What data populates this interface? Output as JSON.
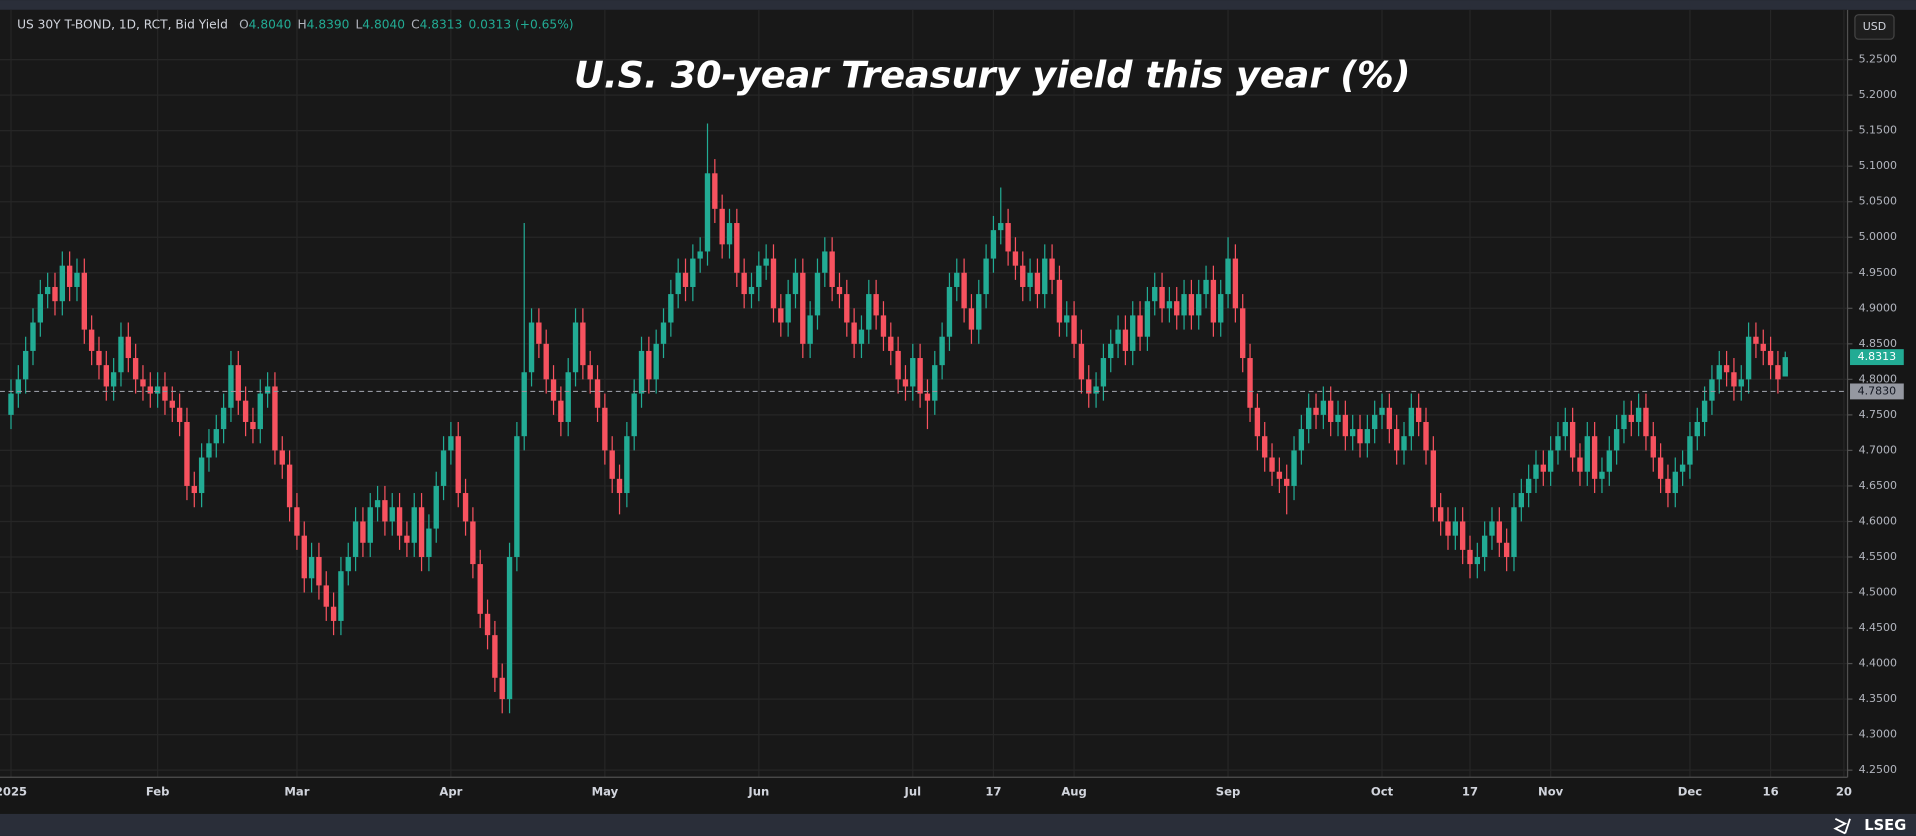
{
  "chart_data": {
    "type": "candlestick",
    "title": "U.S. 30-year Treasury yield this year (%)",
    "header": {
      "symbol": "US 30Y T-BOND, 1D, RCT, Bid Yield",
      "fields": [
        {
          "key": "O",
          "value": "4.8040"
        },
        {
          "key": "H",
          "value": "4.8390"
        },
        {
          "key": "L",
          "value": "4.8040"
        },
        {
          "key": "C",
          "value": "4.8313"
        }
      ],
      "change": "0.0313 (+0.65%)"
    },
    "currency": "USD",
    "brand": "LSEG",
    "up_color": "#22ab94",
    "down_color": "#f7525f",
    "grid": true,
    "open": [
      4.75,
      4.78,
      4.8,
      4.84,
      4.88,
      4.92,
      4.93,
      4.91,
      4.96,
      4.93,
      4.95,
      4.87,
      4.84,
      4.82,
      4.79,
      4.81,
      4.86,
      4.83,
      4.8,
      4.79,
      4.78,
      4.79,
      4.77,
      4.76,
      4.74,
      4.65,
      4.64,
      4.69,
      4.71,
      4.73,
      4.76,
      4.82,
      4.77,
      4.74,
      4.73,
      4.78,
      4.79,
      4.7,
      4.68,
      4.62,
      4.58,
      4.52,
      4.55,
      4.51,
      4.48,
      4.46,
      4.53,
      4.55,
      4.6,
      4.57,
      4.62,
      4.63,
      4.6,
      4.62,
      4.58,
      4.57,
      4.62,
      4.55,
      4.59,
      4.65,
      4.7,
      4.72,
      4.64,
      4.6,
      4.54,
      4.47,
      4.44,
      4.38,
      4.35,
      4.55,
      4.72,
      4.81,
      4.88,
      4.85,
      4.8,
      4.77,
      4.74,
      4.81,
      4.88,
      4.82,
      4.8,
      4.76,
      4.7,
      4.66,
      4.64,
      4.72,
      4.78,
      4.84,
      4.8,
      4.85,
      4.88,
      4.92,
      4.95,
      4.93,
      4.97,
      4.98,
      5.09,
      5.04,
      4.99,
      5.02,
      4.95,
      4.92,
      4.93,
      4.96,
      4.97,
      4.9,
      4.88,
      4.92,
      4.95,
      4.85,
      4.89,
      4.95,
      4.98,
      4.93,
      4.92,
      4.88,
      4.85,
      4.87,
      4.92,
      4.89,
      4.86,
      4.84,
      4.8,
      4.79,
      4.83,
      4.78,
      4.77,
      4.82,
      4.86,
      4.93,
      4.95,
      4.9,
      4.87,
      4.92,
      4.97,
      5.01,
      5.02,
      4.98,
      4.96,
      4.93,
      4.95,
      4.92,
      4.97,
      4.94,
      4.88,
      4.89,
      4.85,
      4.8,
      4.78,
      4.79,
      4.83,
      4.85,
      4.87,
      4.84,
      4.89,
      4.86,
      4.91,
      4.93,
      4.9,
      4.91,
      4.89,
      4.92,
      4.89,
      4.92,
      4.94,
      4.88,
      4.92,
      4.97,
      4.9,
      4.83,
      4.76,
      4.72,
      4.69,
      4.67,
      4.66,
      4.65,
      4.7,
      4.73,
      4.76,
      4.75,
      4.77,
      4.74,
      4.75,
      4.72,
      4.73,
      4.71,
      4.73,
      4.75,
      4.76,
      4.73,
      4.7,
      4.72,
      4.76,
      4.74,
      4.7,
      4.62,
      4.6,
      4.58,
      4.6,
      4.56,
      4.54,
      4.55,
      4.58,
      4.6,
      4.57,
      4.55,
      4.62,
      4.64,
      4.66,
      4.68,
      4.67,
      4.7,
      4.72,
      4.74,
      4.69,
      4.67,
      4.72,
      4.66,
      4.67,
      4.7,
      4.73,
      4.75,
      4.74,
      4.76,
      4.72,
      4.69,
      4.66,
      4.64,
      4.67,
      4.68,
      4.72,
      4.74,
      4.77,
      4.8,
      4.82,
      4.81,
      4.79,
      4.8,
      4.86,
      4.85,
      4.84,
      4.82,
      4.804
    ],
    "high": [
      4.8,
      4.82,
      4.86,
      4.9,
      4.94,
      4.95,
      4.95,
      4.98,
      4.98,
      4.97,
      4.97,
      4.89,
      4.86,
      4.84,
      4.83,
      4.88,
      4.88,
      4.85,
      4.82,
      4.81,
      4.81,
      4.81,
      4.79,
      4.78,
      4.76,
      4.67,
      4.71,
      4.73,
      4.75,
      4.78,
      4.84,
      4.84,
      4.79,
      4.76,
      4.8,
      4.81,
      4.81,
      4.72,
      4.7,
      4.64,
      4.6,
      4.57,
      4.57,
      4.53,
      4.5,
      4.55,
      4.57,
      4.62,
      4.62,
      4.64,
      4.65,
      4.65,
      4.64,
      4.64,
      4.6,
      4.64,
      4.64,
      4.61,
      4.67,
      4.72,
      4.74,
      4.74,
      4.66,
      4.62,
      4.56,
      4.49,
      4.46,
      4.4,
      4.57,
      4.74,
      5.02,
      4.9,
      4.9,
      4.87,
      4.82,
      4.79,
      4.83,
      4.9,
      4.9,
      4.84,
      4.82,
      4.78,
      4.72,
      4.68,
      4.74,
      4.8,
      4.86,
      4.86,
      4.87,
      4.9,
      4.94,
      4.97,
      4.97,
      4.99,
      5.0,
      5.16,
      5.11,
      5.06,
      5.04,
      5.04,
      4.97,
      4.95,
      4.98,
      4.99,
      4.99,
      4.92,
      4.94,
      4.97,
      4.97,
      4.91,
      4.97,
      5.0,
      5.0,
      4.95,
      4.94,
      4.9,
      4.89,
      4.94,
      4.94,
      4.91,
      4.88,
      4.86,
      4.82,
      4.85,
      4.85,
      4.8,
      4.84,
      4.88,
      4.95,
      4.97,
      4.97,
      4.92,
      4.94,
      4.99,
      5.03,
      5.07,
      5.04,
      5.0,
      4.98,
      4.97,
      4.97,
      4.99,
      4.99,
      4.96,
      4.91,
      4.91,
      4.87,
      4.82,
      4.81,
      4.85,
      4.87,
      4.89,
      4.89,
      4.91,
      4.91,
      4.93,
      4.95,
      4.95,
      4.93,
      4.93,
      4.94,
      4.94,
      4.94,
      4.96,
      4.96,
      4.94,
      5.0,
      4.99,
      4.92,
      4.85,
      4.78,
      4.74,
      4.71,
      4.69,
      4.68,
      4.72,
      4.75,
      4.78,
      4.78,
      4.79,
      4.79,
      4.77,
      4.77,
      4.75,
      4.75,
      4.75,
      4.77,
      4.78,
      4.78,
      4.75,
      4.74,
      4.78,
      4.78,
      4.76,
      4.72,
      4.64,
      4.62,
      4.62,
      4.62,
      4.58,
      4.57,
      4.6,
      4.62,
      4.62,
      4.59,
      4.64,
      4.66,
      4.68,
      4.7,
      4.7,
      4.72,
      4.74,
      4.76,
      4.76,
      4.71,
      4.74,
      4.74,
      4.69,
      4.72,
      4.75,
      4.77,
      4.77,
      4.78,
      4.78,
      4.74,
      4.71,
      4.68,
      4.69,
      4.7,
      4.74,
      4.76,
      4.79,
      4.82,
      4.84,
      4.84,
      4.83,
      4.82,
      4.88,
      4.88,
      4.87,
      4.86,
      4.84,
      4.839
    ],
    "low": [
      4.73,
      4.76,
      4.78,
      4.82,
      4.86,
      4.9,
      4.89,
      4.89,
      4.91,
      4.91,
      4.85,
      4.82,
      4.8,
      4.77,
      4.77,
      4.79,
      4.81,
      4.78,
      4.77,
      4.76,
      4.76,
      4.75,
      4.74,
      4.72,
      4.63,
      4.62,
      4.62,
      4.67,
      4.69,
      4.71,
      4.74,
      4.75,
      4.72,
      4.71,
      4.71,
      4.76,
      4.68,
      4.66,
      4.6,
      4.56,
      4.5,
      4.5,
      4.49,
      4.46,
      4.44,
      4.44,
      4.51,
      4.53,
      4.55,
      4.55,
      4.6,
      4.58,
      4.58,
      4.56,
      4.55,
      4.55,
      4.53,
      4.53,
      4.57,
      4.63,
      4.68,
      4.62,
      4.58,
      4.52,
      4.45,
      4.42,
      4.36,
      4.33,
      4.33,
      4.53,
      4.7,
      4.79,
      4.83,
      4.78,
      4.75,
      4.72,
      4.72,
      4.79,
      4.8,
      4.78,
      4.74,
      4.68,
      4.64,
      4.61,
      4.62,
      4.7,
      4.76,
      4.78,
      4.78,
      4.83,
      4.86,
      4.9,
      4.91,
      4.91,
      4.95,
      4.96,
      5.02,
      4.97,
      4.97,
      4.93,
      4.9,
      4.9,
      4.91,
      4.94,
      4.88,
      4.86,
      4.86,
      4.9,
      4.83,
      4.83,
      4.87,
      4.93,
      4.91,
      4.9,
      4.86,
      4.83,
      4.83,
      4.85,
      4.87,
      4.84,
      4.82,
      4.78,
      4.77,
      4.77,
      4.76,
      4.73,
      4.75,
      4.8,
      4.84,
      4.91,
      4.88,
      4.85,
      4.85,
      4.9,
      4.95,
      4.99,
      4.96,
      4.94,
      4.91,
      4.91,
      4.9,
      4.9,
      4.92,
      4.86,
      4.86,
      4.83,
      4.78,
      4.76,
      4.76,
      4.77,
      4.81,
      4.83,
      4.82,
      4.82,
      4.84,
      4.84,
      4.89,
      4.88,
      4.88,
      4.87,
      4.87,
      4.87,
      4.87,
      4.9,
      4.86,
      4.86,
      4.9,
      4.88,
      4.81,
      4.74,
      4.7,
      4.67,
      4.65,
      4.64,
      4.61,
      4.63,
      4.68,
      4.71,
      4.73,
      4.73,
      4.72,
      4.72,
      4.7,
      4.7,
      4.69,
      4.69,
      4.71,
      4.73,
      4.71,
      4.68,
      4.68,
      4.7,
      4.72,
      4.68,
      4.6,
      4.58,
      4.56,
      4.56,
      4.54,
      4.52,
      4.52,
      4.53,
      4.56,
      4.55,
      4.53,
      4.53,
      4.6,
      4.62,
      4.64,
      4.65,
      4.65,
      4.68,
      4.7,
      4.67,
      4.65,
      4.65,
      4.64,
      4.64,
      4.65,
      4.68,
      4.71,
      4.72,
      4.72,
      4.7,
      4.67,
      4.64,
      4.62,
      4.62,
      4.65,
      4.66,
      4.7,
      4.72,
      4.75,
      4.78,
      4.79,
      4.77,
      4.77,
      4.78,
      4.83,
      4.82,
      4.8,
      4.78,
      4.804
    ],
    "close": [
      4.78,
      4.8,
      4.84,
      4.88,
      4.92,
      4.93,
      4.91,
      4.96,
      4.93,
      4.95,
      4.87,
      4.84,
      4.82,
      4.79,
      4.81,
      4.86,
      4.83,
      4.8,
      4.79,
      4.78,
      4.79,
      4.77,
      4.76,
      4.74,
      4.65,
      4.64,
      4.69,
      4.71,
      4.73,
      4.76,
      4.82,
      4.77,
      4.74,
      4.73,
      4.78,
      4.79,
      4.7,
      4.68,
      4.62,
      4.58,
      4.52,
      4.55,
      4.51,
      4.48,
      4.46,
      4.53,
      4.55,
      4.6,
      4.57,
      4.62,
      4.63,
      4.6,
      4.62,
      4.58,
      4.57,
      4.62,
      4.55,
      4.59,
      4.65,
      4.7,
      4.72,
      4.64,
      4.6,
      4.54,
      4.47,
      4.44,
      4.38,
      4.35,
      4.55,
      4.72,
      4.81,
      4.88,
      4.85,
      4.8,
      4.77,
      4.74,
      4.81,
      4.88,
      4.82,
      4.8,
      4.76,
      4.7,
      4.66,
      4.64,
      4.72,
      4.78,
      4.84,
      4.8,
      4.85,
      4.88,
      4.92,
      4.95,
      4.93,
      4.97,
      4.98,
      5.09,
      5.04,
      4.99,
      5.02,
      4.95,
      4.92,
      4.93,
      4.96,
      4.97,
      4.9,
      4.88,
      4.92,
      4.95,
      4.85,
      4.89,
      4.95,
      4.98,
      4.93,
      4.92,
      4.88,
      4.85,
      4.87,
      4.92,
      4.89,
      4.86,
      4.84,
      4.8,
      4.79,
      4.83,
      4.78,
      4.77,
      4.82,
      4.86,
      4.93,
      4.95,
      4.9,
      4.87,
      4.92,
      4.97,
      5.01,
      5.02,
      4.98,
      4.96,
      4.93,
      4.95,
      4.92,
      4.97,
      4.94,
      4.88,
      4.89,
      4.85,
      4.8,
      4.78,
      4.79,
      4.83,
      4.85,
      4.87,
      4.84,
      4.89,
      4.86,
      4.91,
      4.93,
      4.9,
      4.91,
      4.89,
      4.92,
      4.89,
      4.92,
      4.94,
      4.88,
      4.92,
      4.97,
      4.9,
      4.83,
      4.76,
      4.72,
      4.69,
      4.67,
      4.66,
      4.65,
      4.7,
      4.73,
      4.76,
      4.75,
      4.77,
      4.74,
      4.75,
      4.72,
      4.73,
      4.71,
      4.73,
      4.75,
      4.76,
      4.73,
      4.7,
      4.72,
      4.76,
      4.74,
      4.7,
      4.62,
      4.6,
      4.58,
      4.6,
      4.56,
      4.54,
      4.55,
      4.58,
      4.6,
      4.57,
      4.55,
      4.62,
      4.64,
      4.66,
      4.68,
      4.67,
      4.7,
      4.72,
      4.74,
      4.69,
      4.67,
      4.72,
      4.66,
      4.67,
      4.7,
      4.73,
      4.75,
      4.74,
      4.76,
      4.72,
      4.69,
      4.66,
      4.64,
      4.67,
      4.68,
      4.72,
      4.74,
      4.77,
      4.8,
      4.82,
      4.81,
      4.79,
      4.8,
      4.86,
      4.85,
      4.84,
      4.82,
      4.8,
      4.8313
    ],
    "last_label": "4.8313",
    "reference_line": {
      "value": 4.783,
      "label": "4.7830"
    },
    "xlim": [
      -1.5,
      250.5
    ],
    "xticks": [
      {
        "value": 0,
        "label": "2025"
      },
      {
        "value": 20,
        "label": "Feb"
      },
      {
        "value": 39,
        "label": "Mar"
      },
      {
        "value": 60,
        "label": "Apr"
      },
      {
        "value": 81,
        "label": "May"
      },
      {
        "value": 102,
        "label": "Jun"
      },
      {
        "value": 123,
        "label": "Jul"
      },
      {
        "value": 134,
        "label": "17"
      },
      {
        "value": 145,
        "label": "Aug"
      },
      {
        "value": 166,
        "label": "Sep"
      },
      {
        "value": 187,
        "label": "Oct"
      },
      {
        "value": 199,
        "label": "17"
      },
      {
        "value": 210,
        "label": "Nov"
      },
      {
        "value": 229,
        "label": "Dec"
      },
      {
        "value": 240,
        "label": "16"
      },
      {
        "value": 250,
        "label": "20"
      }
    ],
    "ylim": [
      4.24,
      5.32
    ],
    "yticks": [
      {
        "value": 4.25,
        "label": "4.2500"
      },
      {
        "value": 4.3,
        "label": "4.3000"
      },
      {
        "value": 4.35,
        "label": "4.3500"
      },
      {
        "value": 4.4,
        "label": "4.4000"
      },
      {
        "value": 4.45,
        "label": "4.4500"
      },
      {
        "value": 4.5,
        "label": "4.5000"
      },
      {
        "value": 4.55,
        "label": "4.5500"
      },
      {
        "value": 4.6,
        "label": "4.6000"
      },
      {
        "value": 4.65,
        "label": "4.6500"
      },
      {
        "value": 4.7,
        "label": "4.7000"
      },
      {
        "value": 4.75,
        "label": "4.7500"
      },
      {
        "value": 4.8,
        "label": "4.8000"
      },
      {
        "value": 4.85,
        "label": "4.8500"
      },
      {
        "value": 4.9,
        "label": "4.9000"
      },
      {
        "value": 4.95,
        "label": "4.9500"
      },
      {
        "value": 5.0,
        "label": "5.0000"
      },
      {
        "value": 5.05,
        "label": "5.0500"
      },
      {
        "value": 5.1,
        "label": "5.1000"
      },
      {
        "value": 5.15,
        "label": "5.1500"
      },
      {
        "value": 5.2,
        "label": "5.2000"
      },
      {
        "value": 5.25,
        "label": "5.2500"
      }
    ]
  }
}
